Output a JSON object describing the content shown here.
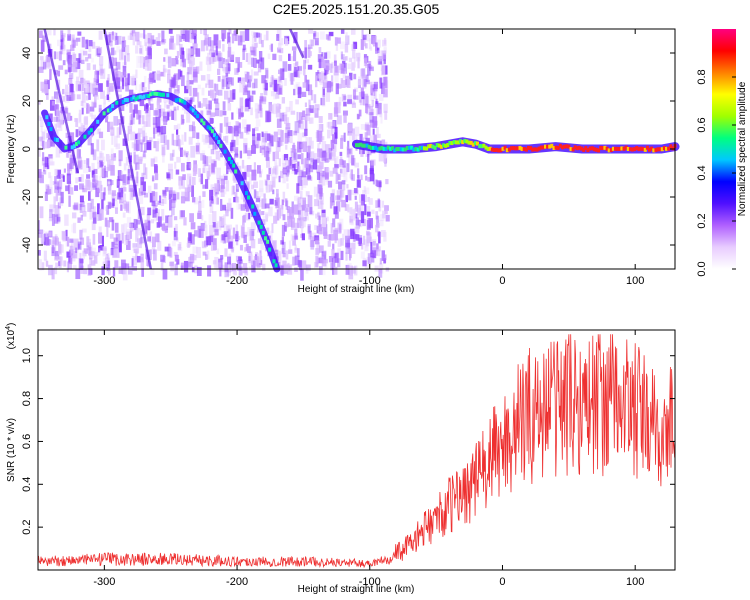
{
  "page": {
    "title": "C2E5.2025.151.20.35.G05"
  },
  "chart_data": [
    {
      "id": "spectrogram",
      "type": "heatmap",
      "xlabel": "Height of straight line (km)",
      "ylabel": "Frequency (Hz)",
      "xlim": [
        -350,
        130
      ],
      "ylim": [
        -50,
        50
      ],
      "x_ticks": [
        -300,
        -200,
        -100,
        0,
        100
      ],
      "y_ticks": [
        -40,
        -20,
        0,
        20,
        40
      ],
      "colorbar": {
        "label": "Normalized spectral amplitude",
        "range": [
          0.0,
          1.0
        ],
        "ticks": [
          "0.0",
          "0.2",
          "0.4",
          "0.6",
          "0.8"
        ],
        "colors": [
          "#ffffff",
          "#e8ccff",
          "#b060ff",
          "#5010ff",
          "#0000ff",
          "#00c8ff",
          "#00ff80",
          "#a0ff00",
          "#ffff00",
          "#ff8000",
          "#ff0000",
          "#ff0080"
        ]
      },
      "ridges": [
        {
          "name": "",
          "x": [
            -345,
            -338,
            -330,
            -320,
            -310,
            -300,
            -290,
            -280,
            -270,
            -260,
            -250,
            -240,
            -230,
            -220,
            -210,
            -200,
            -190,
            -180,
            -175,
            -170
          ],
          "y": [
            15,
            5,
            0,
            2,
            8,
            15,
            19,
            21,
            22,
            23,
            22,
            19,
            14,
            8,
            0,
            -10,
            -22,
            -35,
            -42,
            -50
          ]
        },
        {
          "name": "",
          "x": [
            -110,
            -90,
            -70,
            -50,
            -40,
            -30,
            -20,
            -10,
            0,
            20,
            40,
            60,
            80,
            100,
            110,
            120,
            130
          ],
          "y": [
            2,
            0,
            0,
            1,
            2,
            3,
            2,
            0,
            0,
            0,
            1,
            0,
            0,
            0,
            0,
            0,
            1
          ]
        }
      ]
    },
    {
      "id": "snr",
      "type": "line",
      "xlabel": "Height of straight line (km)",
      "ylabel": "SNR (10 * v/v)",
      "y_multiplier": "(x10^4)",
      "xlim": [
        -350,
        130
      ],
      "ylim": [
        0.0,
        1.12
      ],
      "x_ticks": [
        -300,
        -200,
        -100,
        0,
        100
      ],
      "y_ticks": [
        0.2,
        0.4,
        0.6,
        0.8,
        1.0
      ],
      "line_color": "#ee3030",
      "series": [
        {
          "name": "",
          "x": [
            -350,
            -300,
            -250,
            -200,
            -150,
            -100,
            -90,
            -80,
            -70,
            -60,
            -50,
            -40,
            -30,
            -20,
            -10,
            0,
            10,
            20,
            30,
            40,
            50,
            60,
            70,
            80,
            90,
            100,
            110,
            120,
            130
          ],
          "y": [
            0.04,
            0.05,
            0.05,
            0.04,
            0.04,
            0.03,
            0.05,
            0.08,
            0.12,
            0.18,
            0.24,
            0.3,
            0.36,
            0.42,
            0.5,
            0.58,
            0.66,
            0.72,
            0.75,
            0.78,
            0.79,
            0.78,
            0.79,
            0.8,
            0.78,
            0.74,
            0.68,
            0.62,
            0.7
          ]
        }
      ]
    }
  ]
}
